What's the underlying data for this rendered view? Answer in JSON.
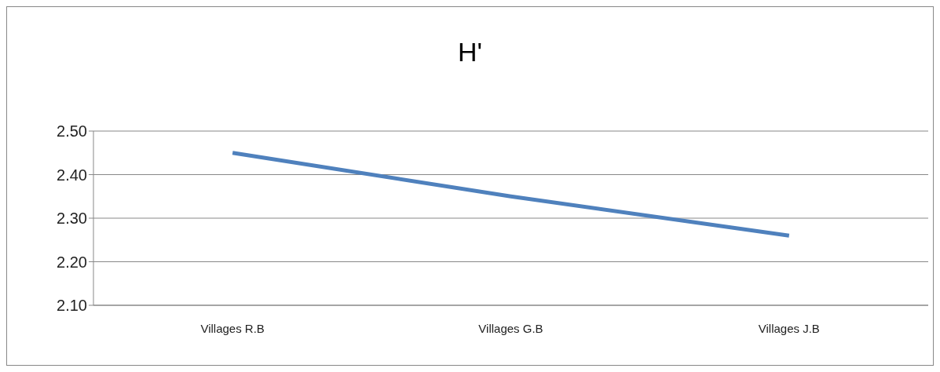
{
  "chart_data": {
    "type": "line",
    "title": "H'",
    "categories": [
      "Villages R.B",
      "Villages G.B",
      "Villages J.B"
    ],
    "series": [
      {
        "color": "#4f81bd",
        "values": [
          2.45,
          2.35,
          2.26
        ]
      }
    ],
    "ylim": [
      2.1,
      2.5
    ],
    "yticks": [
      {
        "value": 2.1,
        "label": "2.10"
      },
      {
        "value": 2.2,
        "label": "2.20"
      },
      {
        "value": 2.3,
        "label": "2.30"
      },
      {
        "value": 2.4,
        "label": "2.40"
      },
      {
        "value": 2.5,
        "label": "2.50"
      }
    ],
    "grid": "y",
    "marker": "none",
    "line_style": "solid"
  }
}
